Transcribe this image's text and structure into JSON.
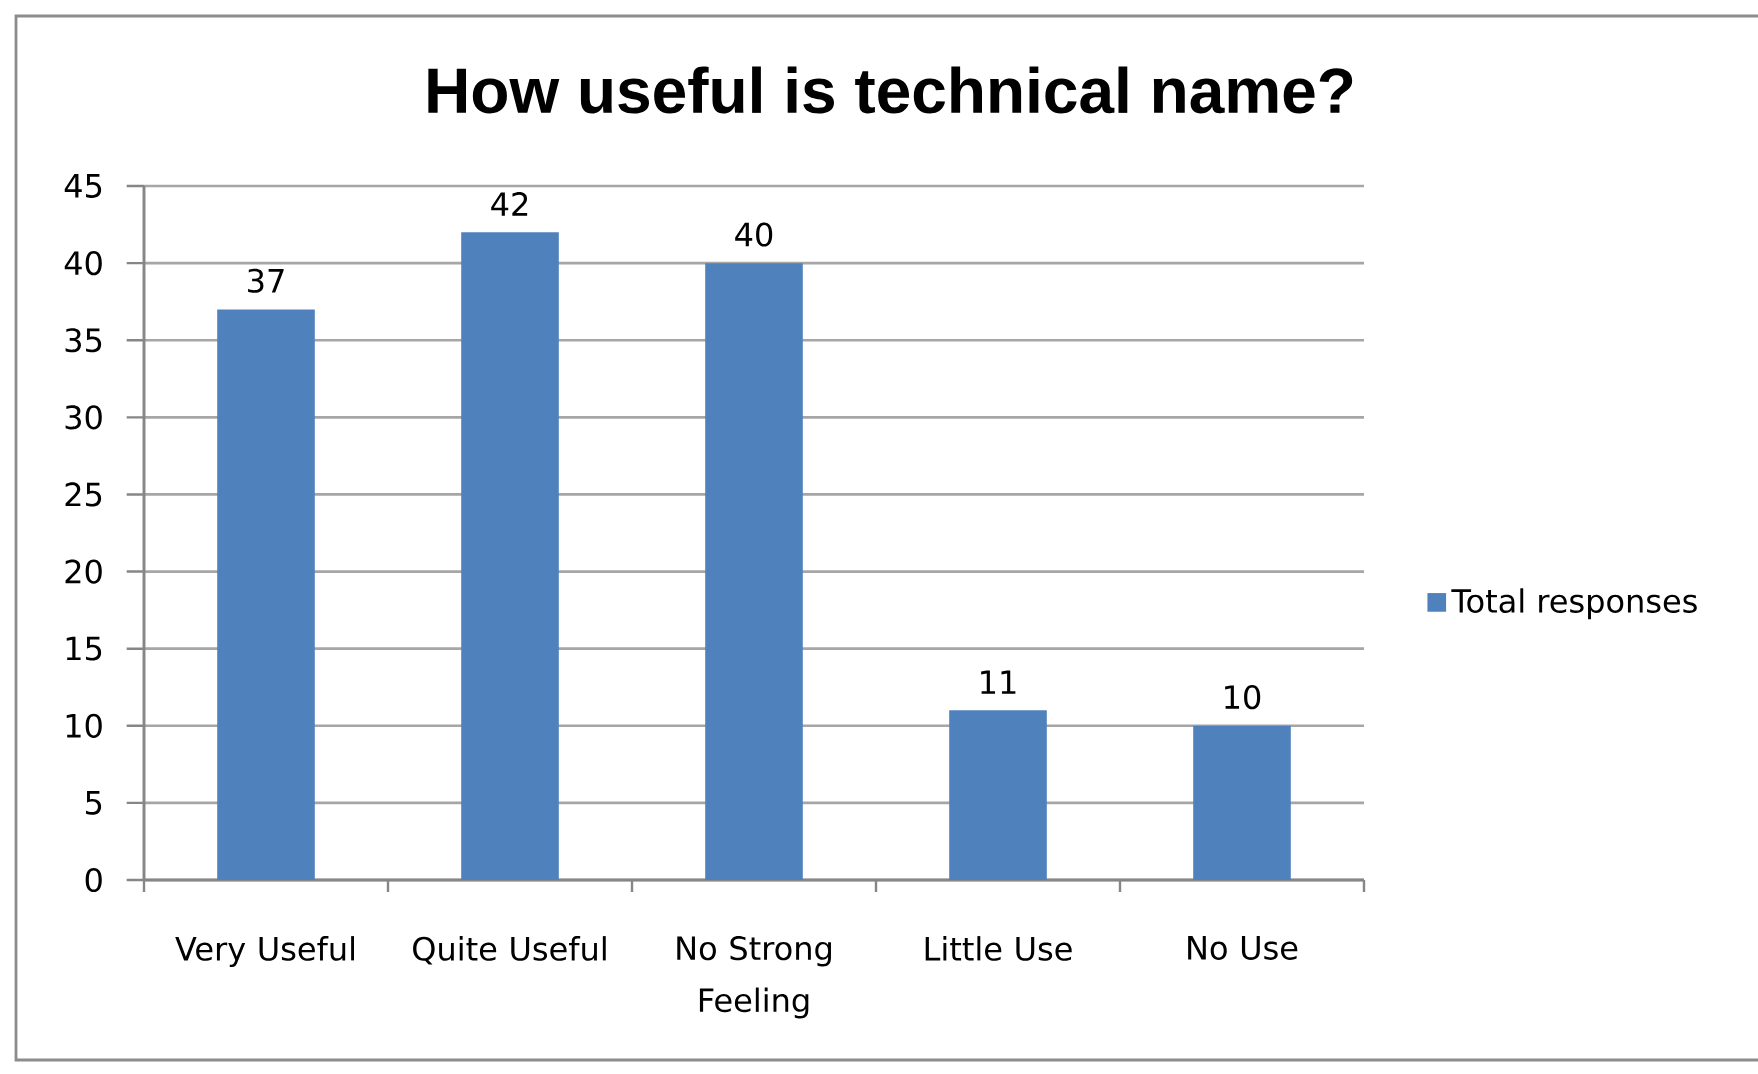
{
  "chart_data": {
    "type": "bar",
    "title": "How useful is technical name?",
    "categories": [
      "Very Useful",
      "Quite Useful",
      "No Strong Feeling",
      "Little Use",
      "No Use"
    ],
    "series": [
      {
        "name": "Total responses",
        "color": "#4f81bd",
        "values": [
          37,
          42,
          40,
          11,
          10
        ]
      }
    ],
    "ylim": [
      0,
      45
    ],
    "yticks": [
      0,
      5,
      10,
      15,
      20,
      25,
      30,
      35,
      40,
      45
    ],
    "grid": "y",
    "legend": "right",
    "data_labels": true
  }
}
